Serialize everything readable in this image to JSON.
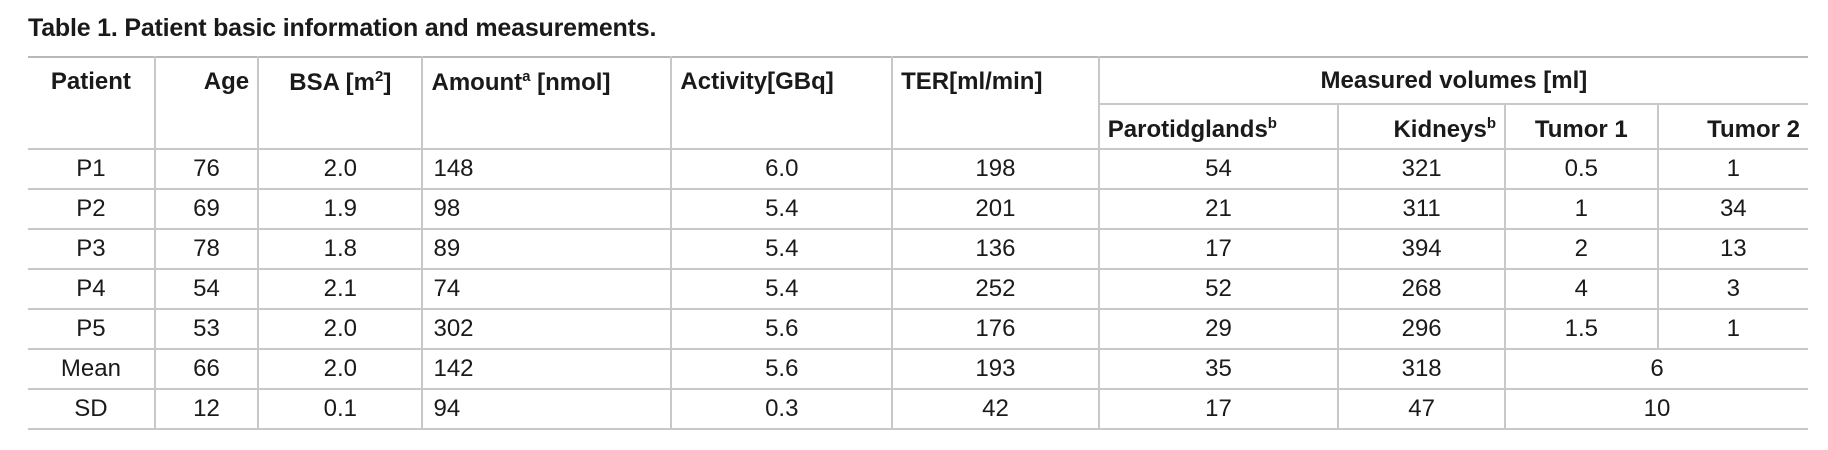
{
  "caption": "Table 1.  Patient basic information and measurements.",
  "headers": {
    "patient": "Patient",
    "age": "Age",
    "bsa": "BSA [m",
    "bsa_sup": "2",
    "bsa_end": "]",
    "amount": "Amount",
    "amount_sup": "a",
    "amount_end": " [nmol]",
    "activity": "Activity[GBq]",
    "ter": "TER[ml/min]",
    "measured_volumes": "Measured volumes [ml]",
    "parotid": "Parotidglands",
    "parotid_sup": "b",
    "kidneys": "Kidneys",
    "kidneys_sup": "b",
    "tumor1": "Tumor 1",
    "tumor2": "Tumor 2"
  },
  "rows": [
    {
      "patient": "P1",
      "age": "76",
      "bsa": "2.0",
      "amount": "148",
      "activity": "6.0",
      "ter": "198",
      "parotid": "54",
      "kidneys": "321",
      "tumor1": "0.5",
      "tumor2": "1"
    },
    {
      "patient": "P2",
      "age": "69",
      "bsa": "1.9",
      "amount": "98",
      "activity": "5.4",
      "ter": "201",
      "parotid": "21",
      "kidneys": "311",
      "tumor1": "1",
      "tumor2": "34"
    },
    {
      "patient": "P3",
      "age": "78",
      "bsa": "1.8",
      "amount": "89",
      "activity": "5.4",
      "ter": "136",
      "parotid": "17",
      "kidneys": "394",
      "tumor1": "2",
      "tumor2": "13"
    },
    {
      "patient": "P4",
      "age": "54",
      "bsa": "2.1",
      "amount": "74",
      "activity": "5.4",
      "ter": "252",
      "parotid": "52",
      "kidneys": "268",
      "tumor1": "4",
      "tumor2": "3"
    },
    {
      "patient": "P5",
      "age": "53",
      "bsa": "2.0",
      "amount": "302",
      "activity": "5.6",
      "ter": "176",
      "parotid": "29",
      "kidneys": "296",
      "tumor1": "1.5",
      "tumor2": "1"
    }
  ],
  "summary": [
    {
      "patient": "Mean",
      "age": "66",
      "bsa": "2.0",
      "amount": "142",
      "activity": "5.6",
      "ter": "193",
      "parotid": "35",
      "kidneys": "318",
      "tumors": "6"
    },
    {
      "patient": "SD",
      "age": "12",
      "bsa": "0.1",
      "amount": "94",
      "activity": "0.3",
      "ter": "42",
      "parotid": "17",
      "kidneys": "47",
      "tumors": "10"
    }
  ]
}
